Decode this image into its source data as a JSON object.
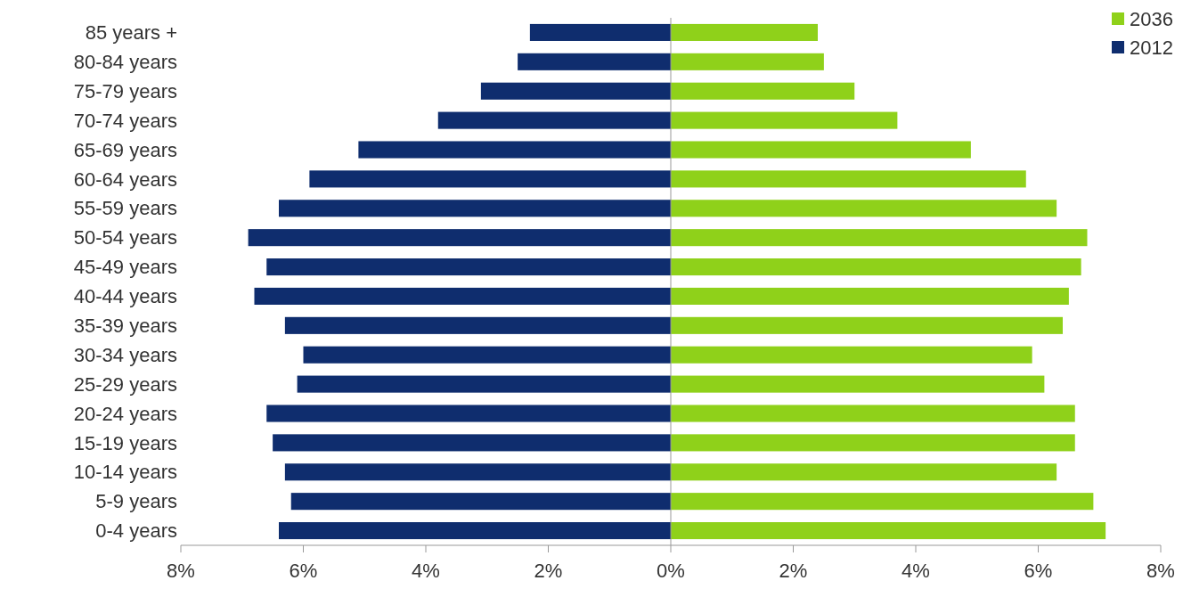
{
  "chart_data": {
    "type": "bar",
    "orientation": "horizontal",
    "stacked": true,
    "categories": [
      "85 years +",
      "80-84 years",
      "75-79 years",
      "70-74 years",
      "65-69 years",
      "60-64 years",
      "55-59 years",
      "50-54 years",
      "45-49 years",
      "40-44 years",
      "35-39 years",
      "30-34 years",
      "25-29 years",
      "20-24 years",
      "15-19 years",
      "10-14 years",
      "5-9 years",
      "0-4 years"
    ],
    "series": [
      {
        "name": "2012",
        "color": "#0f2d6e",
        "values": [
          -2.3,
          -2.5,
          -3.1,
          -3.8,
          -5.1,
          -5.9,
          -6.4,
          -6.9,
          -6.6,
          -6.8,
          -6.3,
          -6.0,
          -6.1,
          -6.6,
          -6.5,
          -6.3,
          -6.2,
          -6.4
        ]
      },
      {
        "name": "2036",
        "color": "#8fd11a",
        "values": [
          2.4,
          2.5,
          3.0,
          3.7,
          4.9,
          5.8,
          6.3,
          6.8,
          6.7,
          6.5,
          6.4,
          5.9,
          6.1,
          6.6,
          6.6,
          6.3,
          6.9,
          7.1
        ]
      }
    ],
    "xlim": [
      -8,
      8
    ],
    "xticks": [
      {
        "value": -8,
        "label": "8%"
      },
      {
        "value": -6,
        "label": "6%"
      },
      {
        "value": -4,
        "label": "4%"
      },
      {
        "value": -2,
        "label": "2%"
      },
      {
        "value": 0,
        "label": "0%"
      },
      {
        "value": 2,
        "label": "2%"
      },
      {
        "value": 4,
        "label": "4%"
      },
      {
        "value": 6,
        "label": "6%"
      },
      {
        "value": 8,
        "label": "8%"
      }
    ],
    "legend": "top right"
  }
}
